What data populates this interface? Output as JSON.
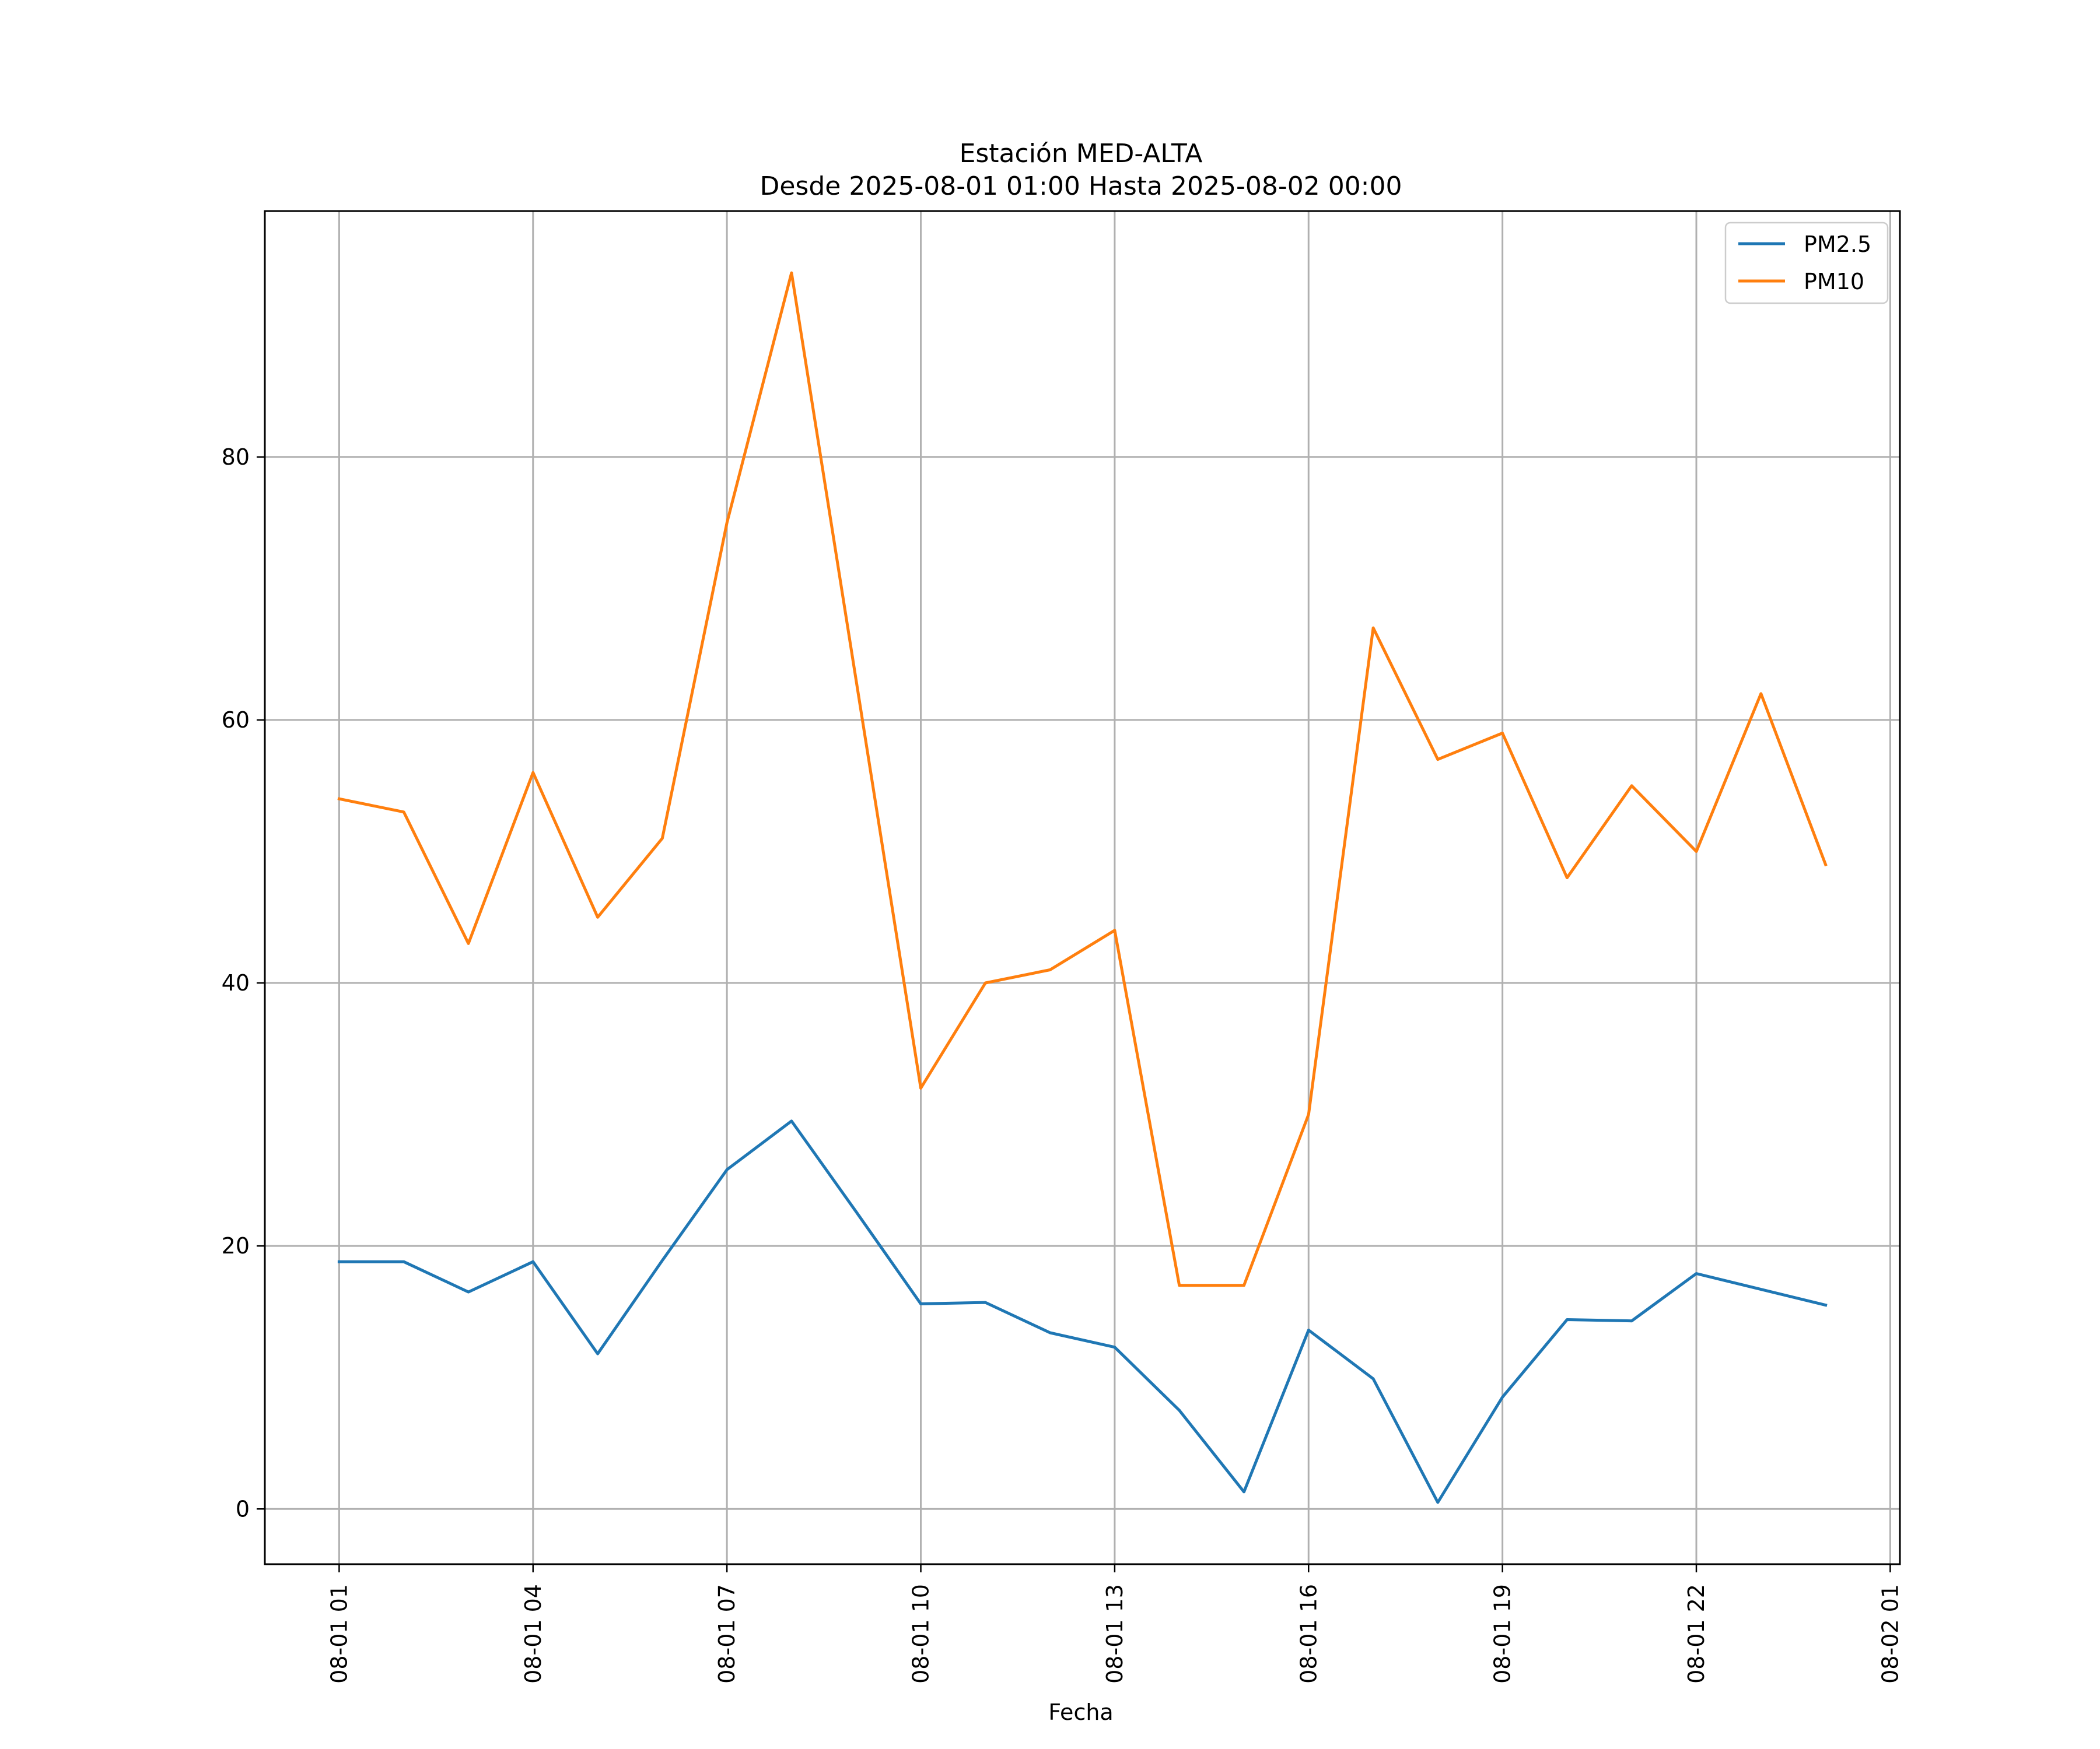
{
  "chart_data": {
    "type": "line",
    "title": "Estación MED-ALTA",
    "subtitle": "Desde 2025-08-01 01:00 Hasta 2025-08-02 00:00",
    "xlabel": "Fecha",
    "ylabel": "",
    "x_tick_labels": [
      "08-01 01",
      "08-01 04",
      "08-01 07",
      "08-01 10",
      "08-01 13",
      "08-01 16",
      "08-01 19",
      "08-01 22",
      "08-02 01"
    ],
    "x_ticks_hours": [
      1,
      4,
      7,
      10,
      13,
      16,
      19,
      22,
      25
    ],
    "y_tick_labels": [
      "0",
      "20",
      "40",
      "60",
      "80"
    ],
    "y_ticks": [
      0,
      20,
      40,
      60,
      80
    ],
    "xlim_hours": [
      -0.15,
      25.15
    ],
    "ylim": [
      -4.2,
      98.7
    ],
    "grid": true,
    "legend_position": "upper right",
    "x_hours": [
      1,
      2,
      3,
      4,
      5,
      6,
      7,
      8,
      9,
      10,
      11,
      12,
      13,
      14,
      15,
      16,
      17,
      18,
      19,
      20,
      21,
      22,
      23,
      24
    ],
    "series": [
      {
        "name": "PM2.5",
        "color": "#1f77b4",
        "values": [
          18.8,
          18.8,
          16.5,
          18.8,
          11.8,
          18.9,
          25.8,
          29.5,
          22.6,
          15.6,
          15.7,
          13.4,
          12.3,
          7.5,
          1.3,
          13.6,
          9.9,
          0.5,
          8.5,
          14.4,
          14.3,
          17.9,
          16.7,
          15.5
        ]
      },
      {
        "name": "PM10",
        "color": "#ff7f0e",
        "values": [
          54,
          53,
          43,
          56,
          45,
          51,
          75,
          94,
          63,
          32,
          40,
          41,
          44,
          17,
          17,
          30,
          67,
          57,
          59,
          48,
          55,
          50,
          62,
          49
        ]
      }
    ]
  }
}
